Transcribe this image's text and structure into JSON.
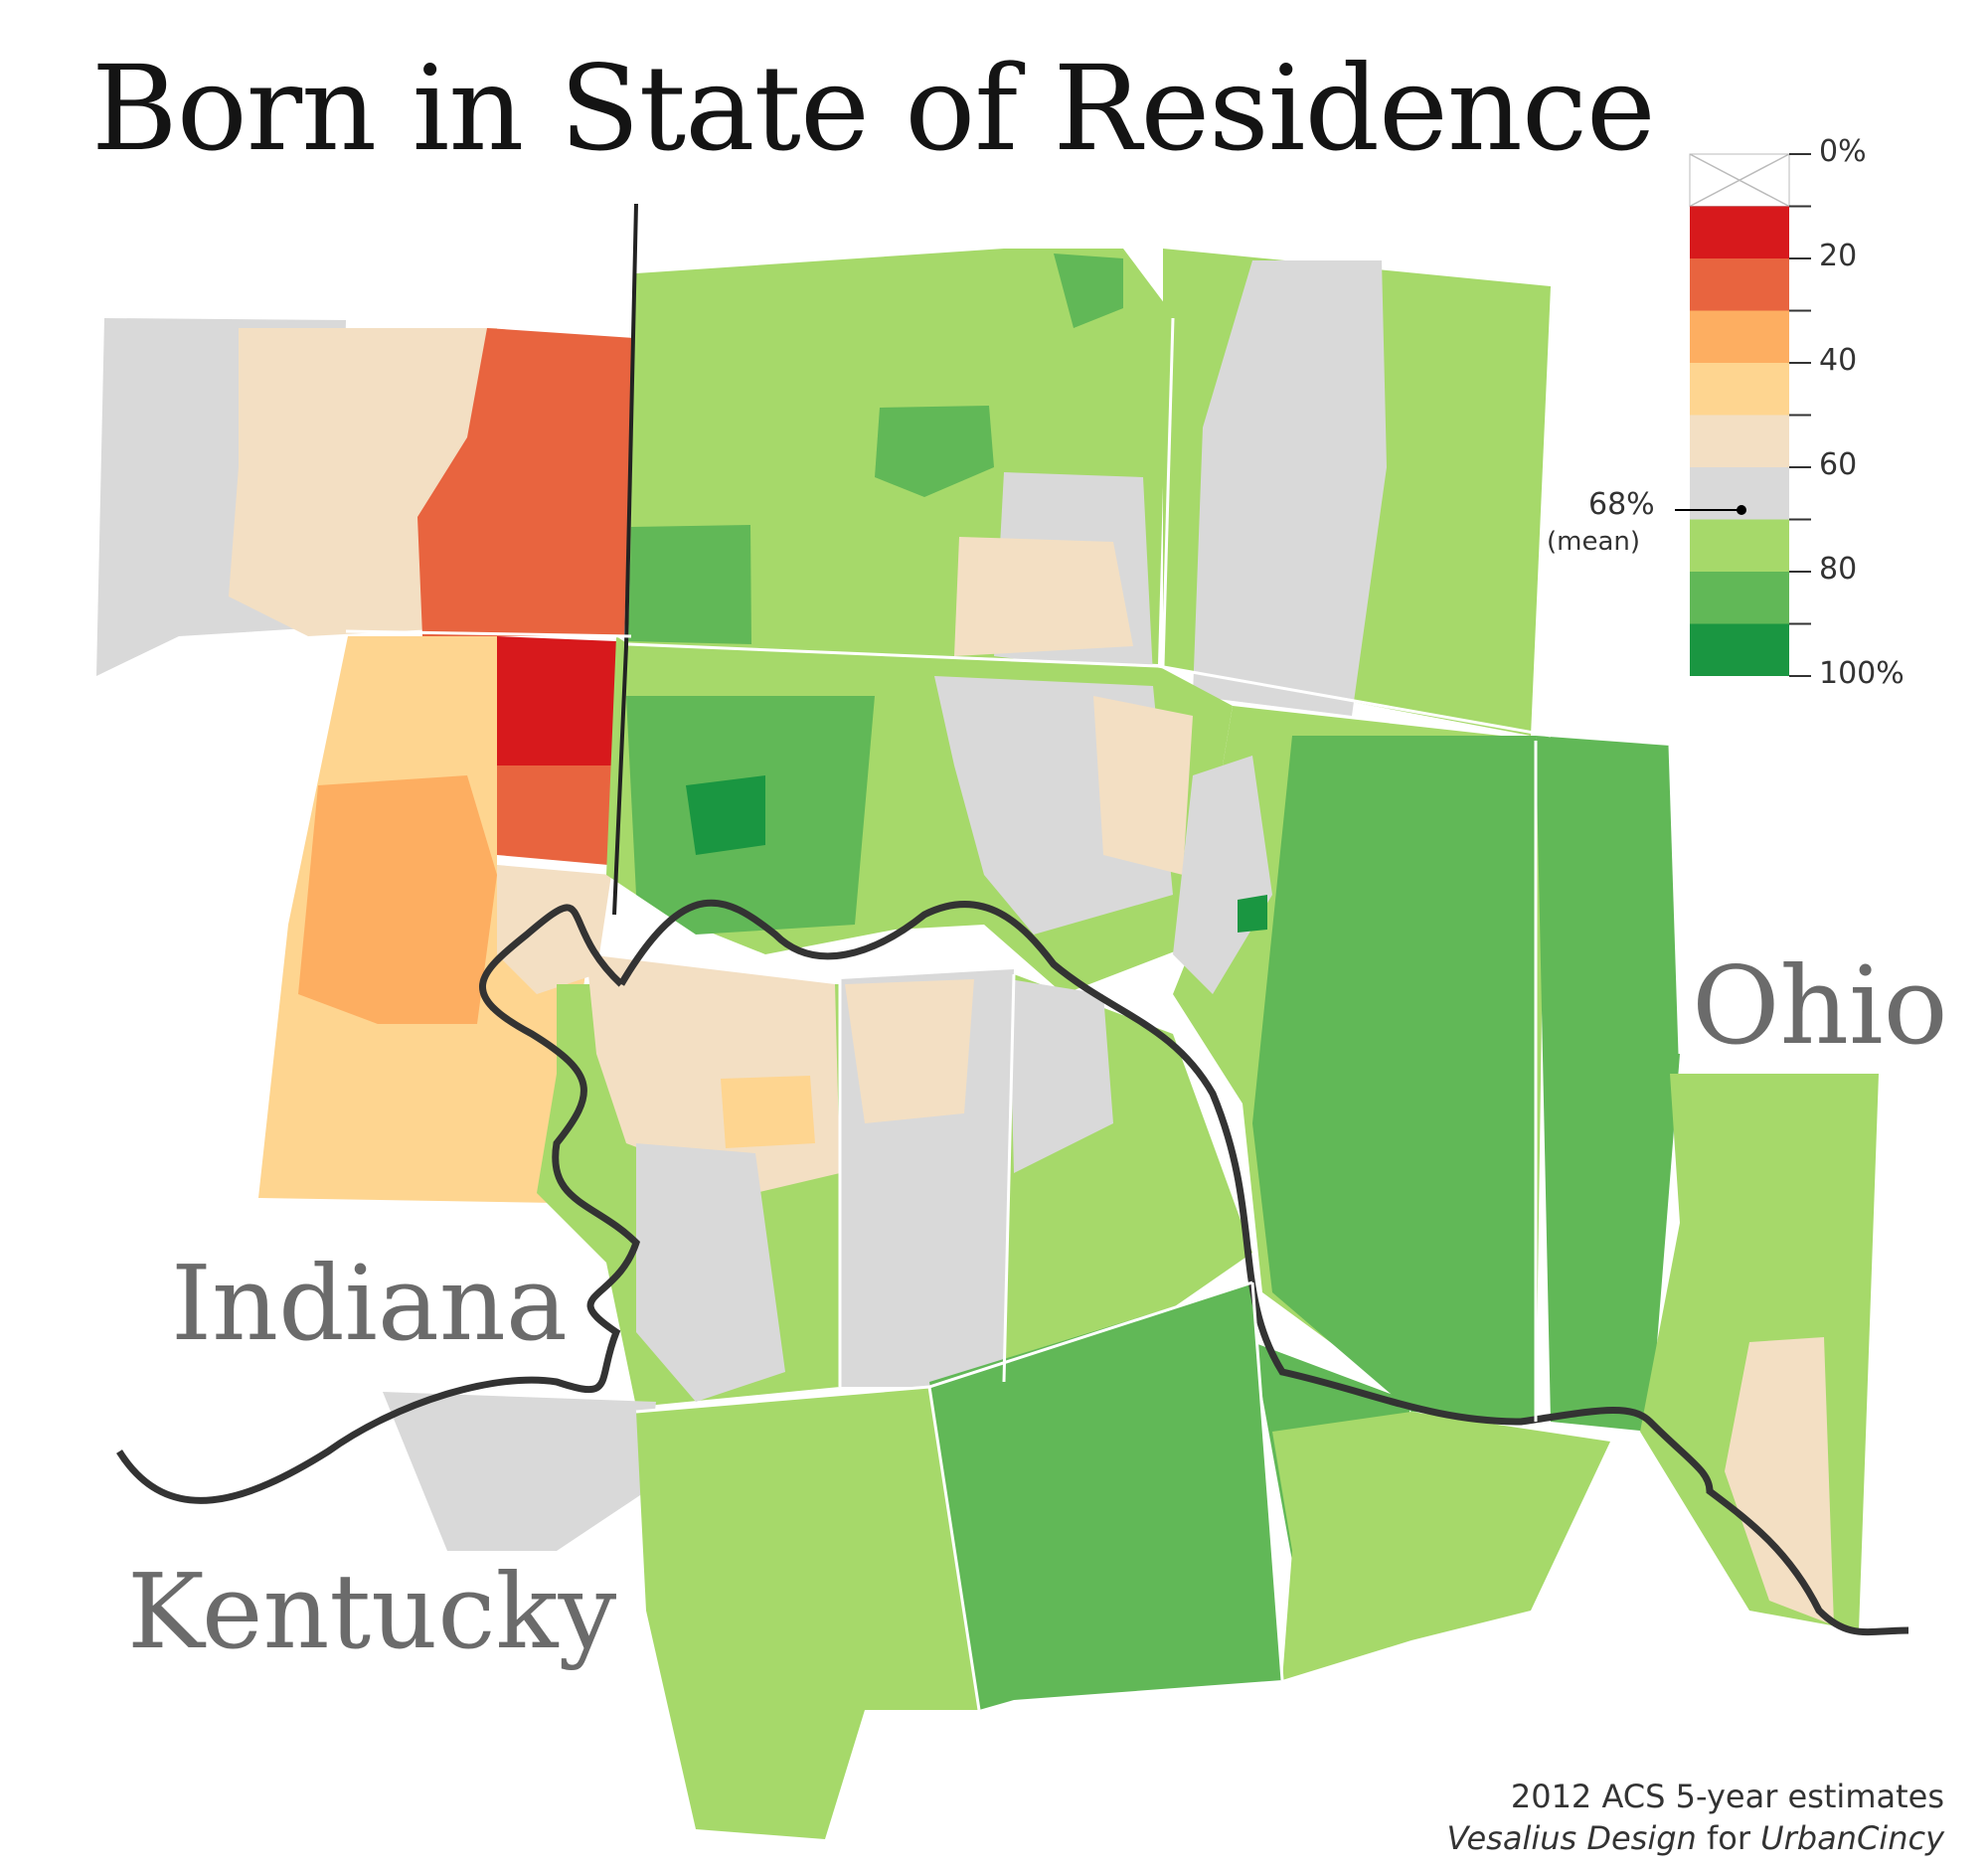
{
  "title": "Born in State of Residence",
  "states": {
    "ohio": "Ohio",
    "indiana": "Indiana",
    "kentucky": "Kentucky"
  },
  "legend": {
    "tick_labels": [
      "0%",
      "20",
      "40",
      "60",
      "80",
      "100%"
    ],
    "bins": [
      {
        "from": 0,
        "to": 10,
        "color": "#ffffff",
        "no_data": true
      },
      {
        "from": 10,
        "to": 20,
        "color": "#d7191c"
      },
      {
        "from": 20,
        "to": 30,
        "color": "#e8643f"
      },
      {
        "from": 30,
        "to": 40,
        "color": "#fdae61"
      },
      {
        "from": 40,
        "to": 50,
        "color": "#fed590"
      },
      {
        "from": 50,
        "to": 60,
        "color": "#f3dfc3"
      },
      {
        "from": 60,
        "to": 70,
        "color": "#d9d9d9"
      },
      {
        "from": 70,
        "to": 80,
        "color": "#a6d96a"
      },
      {
        "from": 80,
        "to": 90,
        "color": "#61b857"
      },
      {
        "from": 90,
        "to": 100,
        "color": "#1a9641"
      }
    ],
    "mean_value": 68,
    "mean_label": "68%",
    "mean_note": "(mean)"
  },
  "credits": {
    "source": "2012 ACS 5-year estimates",
    "author": "Vesalius Design",
    "for_word": "for",
    "client": "UrbanCincy"
  },
  "colors": {
    "border_white": "#ffffff",
    "river": "#333333",
    "state_line": "#222222"
  }
}
